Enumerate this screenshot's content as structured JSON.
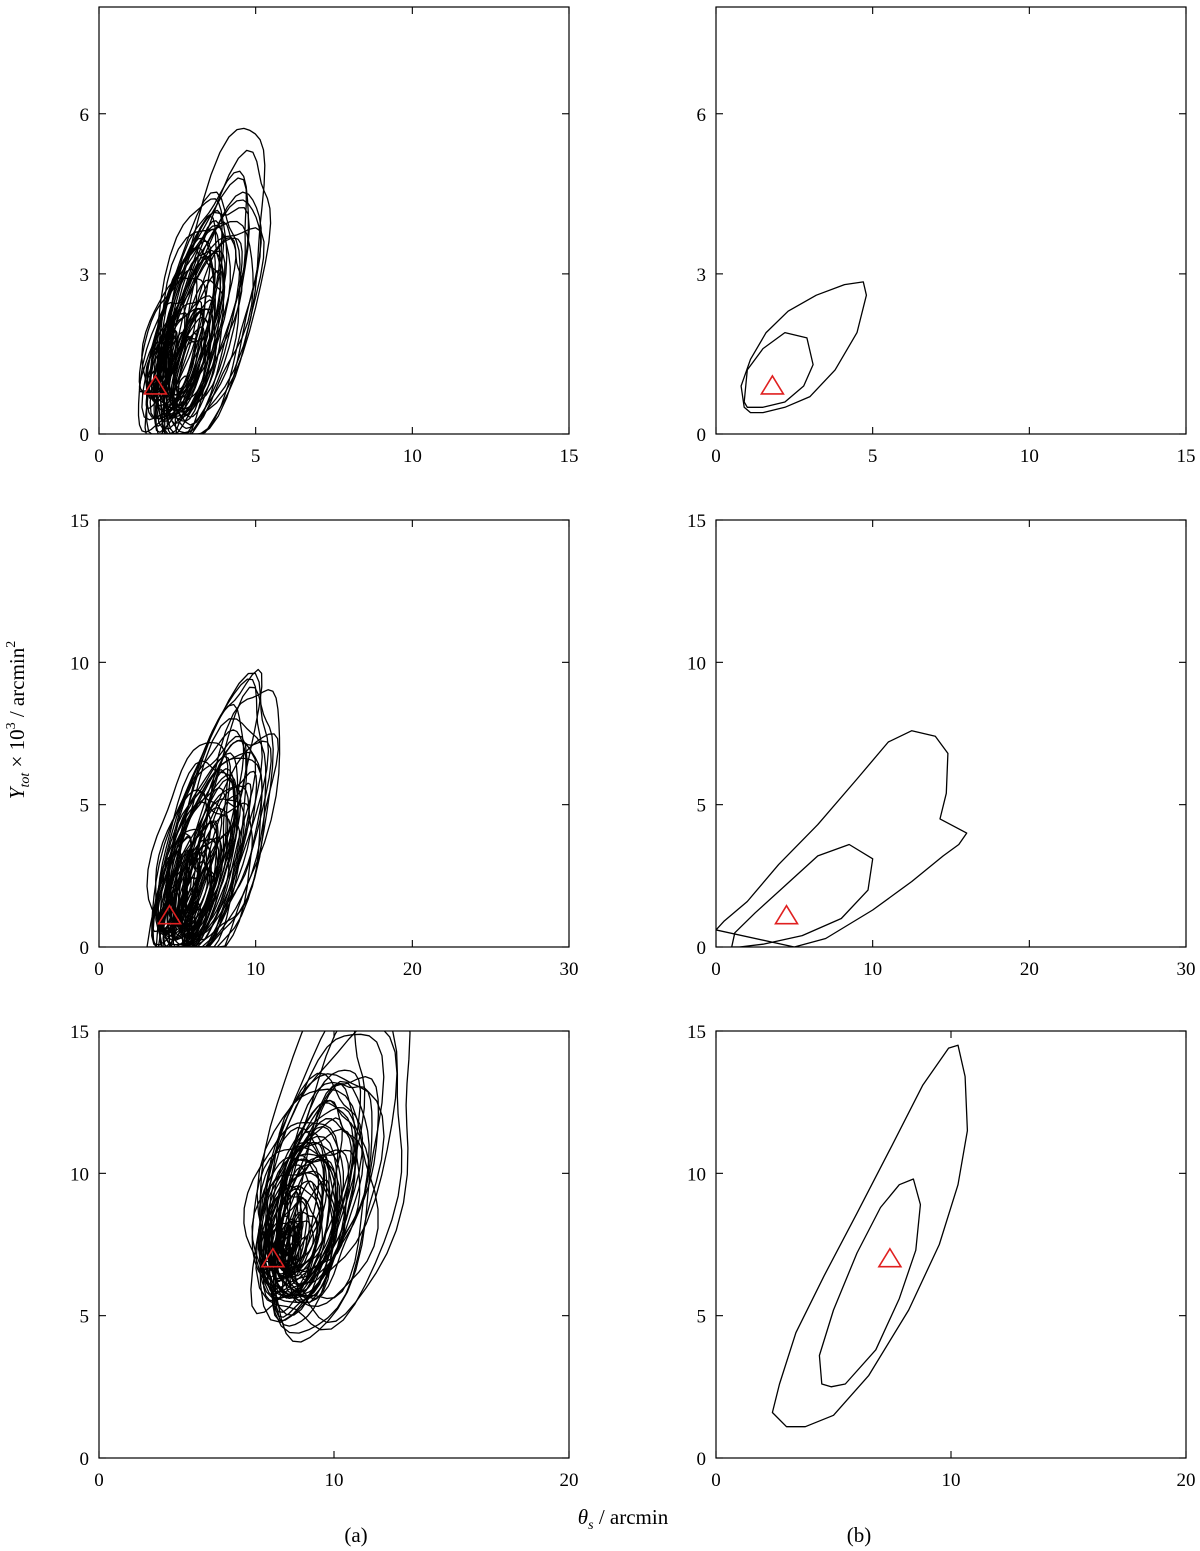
{
  "figure": {
    "xlabel_symbol": "θ",
    "xlabel_sub": "s",
    "xlabel_unit": " / arcmin",
    "ylabel_symbol": "Y",
    "ylabel_sub": "tot",
    "ylabel_mid": " × 10",
    "ylabel_sup": "3",
    "ylabel_unit": " / arcmin",
    "ylabel_sup2": "2",
    "column_labels": [
      "(a)",
      "(b)"
    ],
    "line_color": "#000000",
    "marker_color": "#e02020"
  },
  "chart_data": [
    {
      "id": "row1-a",
      "type": "contour",
      "column": "(a)",
      "xlim": [
        0,
        15
      ],
      "ylim": [
        0,
        8
      ],
      "xticks": [
        0,
        5,
        10,
        15
      ],
      "yticks": [
        0,
        3,
        6
      ],
      "marker": {
        "shape": "triangle",
        "x": 1.8,
        "y": 0.9
      },
      "contour_sets": 60,
      "spread": [
        1.0,
        1.0
      ]
    },
    {
      "id": "row1-b",
      "type": "contour",
      "column": "(b)",
      "xlim": [
        0,
        15
      ],
      "ylim": [
        0,
        8
      ],
      "xticks": [
        0,
        5,
        10,
        15
      ],
      "yticks": [
        0,
        3,
        6
      ],
      "marker": {
        "shape": "triangle",
        "x": 1.8,
        "y": 0.9
      },
      "contours": [
        [
          [
            0.9,
            0.6
          ],
          [
            1.0,
            1.2
          ],
          [
            1.5,
            1.6
          ],
          [
            2.2,
            1.9
          ],
          [
            2.9,
            1.8
          ],
          [
            3.1,
            1.3
          ],
          [
            2.8,
            0.9
          ],
          [
            2.2,
            0.6
          ],
          [
            1.5,
            0.5
          ],
          [
            1.0,
            0.5
          ]
        ],
        [
          [
            0.9,
            0.5
          ],
          [
            0.8,
            0.9
          ],
          [
            1.1,
            1.4
          ],
          [
            1.6,
            1.9
          ],
          [
            2.3,
            2.3
          ],
          [
            3.2,
            2.6
          ],
          [
            4.1,
            2.8
          ],
          [
            4.7,
            2.85
          ],
          [
            4.8,
            2.6
          ],
          [
            4.5,
            1.9
          ],
          [
            3.8,
            1.2
          ],
          [
            3.0,
            0.7
          ],
          [
            2.2,
            0.5
          ],
          [
            1.5,
            0.4
          ],
          [
            1.1,
            0.4
          ]
        ]
      ]
    },
    {
      "id": "row2-a",
      "type": "contour",
      "column": "(a)",
      "xlim": [
        0,
        30
      ],
      "ylim": [
        0,
        15
      ],
      "xticks": [
        0,
        10,
        20,
        30
      ],
      "yticks": [
        0,
        5,
        10,
        15
      ],
      "marker": {
        "shape": "triangle",
        "x": 4.5,
        "y": 1.1
      },
      "contour_sets": 70,
      "spread": [
        2.0,
        1.9
      ]
    },
    {
      "id": "row2-b",
      "type": "contour",
      "column": "(b)",
      "xlim": [
        0,
        30
      ],
      "ylim": [
        0,
        15
      ],
      "xticks": [
        0,
        10,
        20,
        30
      ],
      "yticks": [
        0,
        5,
        10,
        15
      ],
      "marker": {
        "shape": "triangle",
        "x": 4.5,
        "y": 1.1
      },
      "contours": [
        [
          [
            1.0,
            0.0
          ],
          [
            1.2,
            0.5
          ],
          [
            2.5,
            1.2
          ],
          [
            4.5,
            2.2
          ],
          [
            6.5,
            3.2
          ],
          [
            8.5,
            3.6
          ],
          [
            10.0,
            3.1
          ],
          [
            9.7,
            2.0
          ],
          [
            8.0,
            1.0
          ],
          [
            5.5,
            0.4
          ],
          [
            3.0,
            0.1
          ],
          [
            1.5,
            0.0
          ]
        ],
        [
          [
            0.0,
            0.6
          ],
          [
            0.5,
            0.9
          ],
          [
            2.0,
            1.6
          ],
          [
            4.0,
            2.9
          ],
          [
            6.5,
            4.3
          ],
          [
            9.0,
            5.9
          ],
          [
            11.0,
            7.2
          ],
          [
            12.5,
            7.6
          ],
          [
            14.0,
            7.4
          ],
          [
            14.8,
            6.8
          ],
          [
            14.7,
            5.4
          ],
          [
            14.3,
            4.5
          ],
          [
            16.0,
            4.0
          ],
          [
            15.5,
            3.6
          ],
          [
            14.5,
            3.2
          ],
          [
            12.5,
            2.3
          ],
          [
            10.0,
            1.3
          ],
          [
            7.0,
            0.3
          ],
          [
            5.0,
            0.0
          ]
        ]
      ]
    },
    {
      "id": "row3-a",
      "type": "contour",
      "column": "(a)",
      "xlim": [
        0,
        20
      ],
      "ylim": [
        0,
        15
      ],
      "xticks": [
        0,
        10,
        20
      ],
      "yticks": [
        0,
        5,
        10,
        15
      ],
      "marker": {
        "shape": "triangle",
        "x": 7.4,
        "y": 7.0
      },
      "contour_sets": 70,
      "spread": [
        1.3,
        1.9
      ]
    },
    {
      "id": "row3-b",
      "type": "contour",
      "column": "(b)",
      "xlim": [
        0,
        20
      ],
      "ylim": [
        0,
        15
      ],
      "xticks": [
        0,
        10,
        20
      ],
      "yticks": [
        0,
        5,
        10,
        15
      ],
      "marker": {
        "shape": "triangle",
        "x": 7.4,
        "y": 7.0
      },
      "contours": [
        [
          [
            4.5,
            2.6
          ],
          [
            4.4,
            3.6
          ],
          [
            5.0,
            5.2
          ],
          [
            6.0,
            7.2
          ],
          [
            7.0,
            8.8
          ],
          [
            7.8,
            9.6
          ],
          [
            8.4,
            9.8
          ],
          [
            8.7,
            8.9
          ],
          [
            8.5,
            7.3
          ],
          [
            7.8,
            5.6
          ],
          [
            6.8,
            3.8
          ],
          [
            5.5,
            2.6
          ],
          [
            4.9,
            2.5
          ]
        ],
        [
          [
            2.4,
            1.6
          ],
          [
            2.7,
            2.6
          ],
          [
            3.4,
            4.4
          ],
          [
            4.6,
            6.4
          ],
          [
            6.0,
            8.6
          ],
          [
            7.5,
            11.0
          ],
          [
            8.8,
            13.1
          ],
          [
            9.9,
            14.4
          ],
          [
            10.3,
            14.5
          ],
          [
            10.6,
            13.4
          ],
          [
            10.7,
            11.5
          ],
          [
            10.3,
            9.6
          ],
          [
            9.5,
            7.5
          ],
          [
            8.2,
            5.2
          ],
          [
            6.5,
            2.9
          ],
          [
            5.0,
            1.5
          ],
          [
            3.8,
            1.1
          ],
          [
            3.0,
            1.1
          ]
        ]
      ]
    }
  ]
}
